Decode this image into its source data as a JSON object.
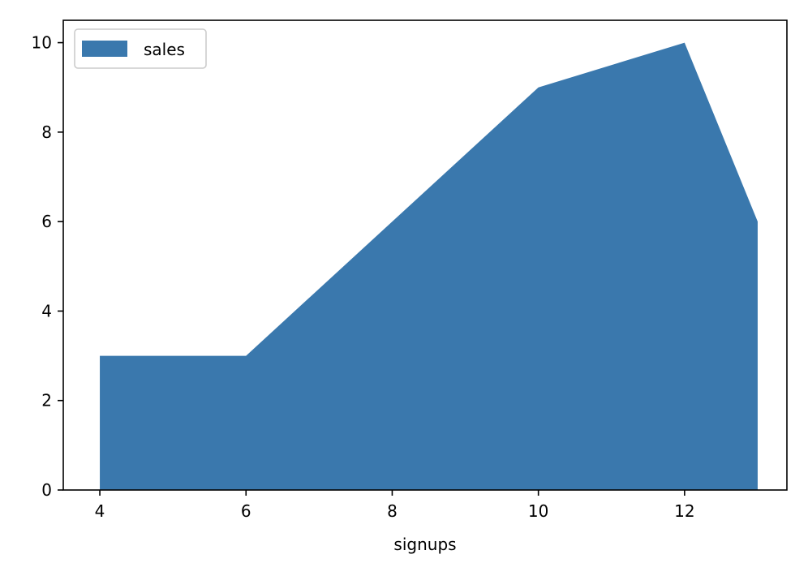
{
  "chart_data": {
    "type": "area",
    "xlabel": "signups",
    "ylabel": "",
    "x": [
      4,
      6,
      10,
      12,
      13
    ],
    "series": [
      {
        "name": "sales",
        "values": [
          3,
          3,
          9,
          10,
          6
        ],
        "color": "#3a78ad"
      }
    ],
    "xlim": [
      3.5,
      13.4
    ],
    "ylim": [
      0,
      10.5
    ],
    "xticks": [
      4,
      6,
      8,
      10,
      12
    ],
    "yticks": [
      0,
      2,
      4,
      6,
      8,
      10
    ],
    "grid": false,
    "legend": {
      "position": "top-left",
      "entries": [
        "sales"
      ]
    }
  }
}
